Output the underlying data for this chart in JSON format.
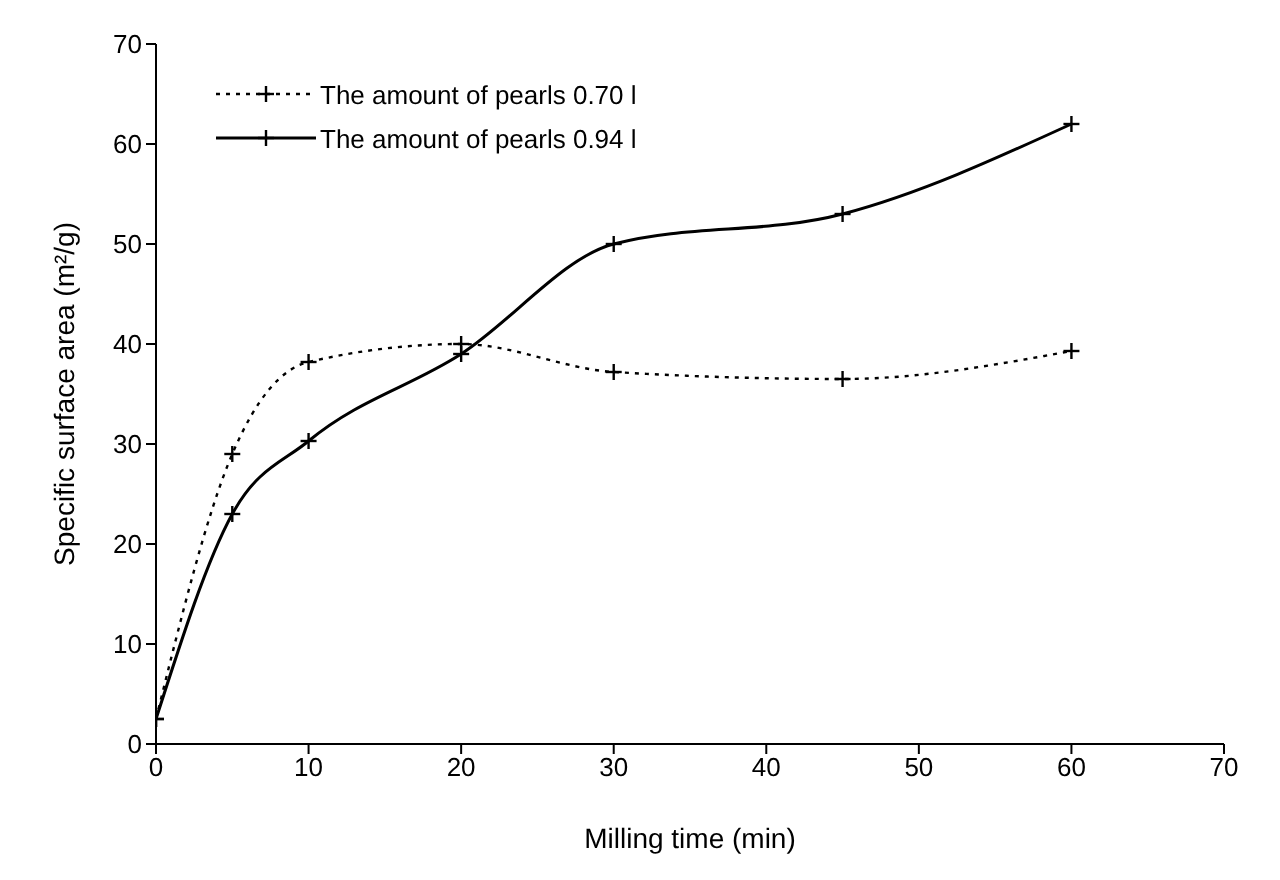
{
  "chart_data": {
    "type": "line",
    "xlabel": "Milling time (min)",
    "ylabel": "Specific surface area (m²/g)",
    "x": [
      0,
      5,
      10,
      20,
      30,
      45,
      60
    ],
    "series": [
      {
        "name": "The amount of pearls 0.70 l",
        "color": "#000000",
        "line_style": "dotted",
        "values": [
          2.5,
          29,
          38.2,
          40,
          37.2,
          36.5,
          39.3
        ]
      },
      {
        "name": "The amount of pearls 0.94 l",
        "color": "#000000",
        "line_style": "solid",
        "values": [
          2.5,
          23,
          30.3,
          39,
          50,
          53,
          62
        ]
      }
    ],
    "xlim": [
      0,
      70
    ],
    "xticks": [
      0,
      10,
      20,
      30,
      40,
      50,
      60,
      70
    ],
    "ylim": [
      0,
      70
    ],
    "yticks": [
      0,
      10,
      20,
      30,
      40,
      50,
      60,
      70
    ],
    "grid": false,
    "legend": "top left",
    "marker": "cross"
  }
}
